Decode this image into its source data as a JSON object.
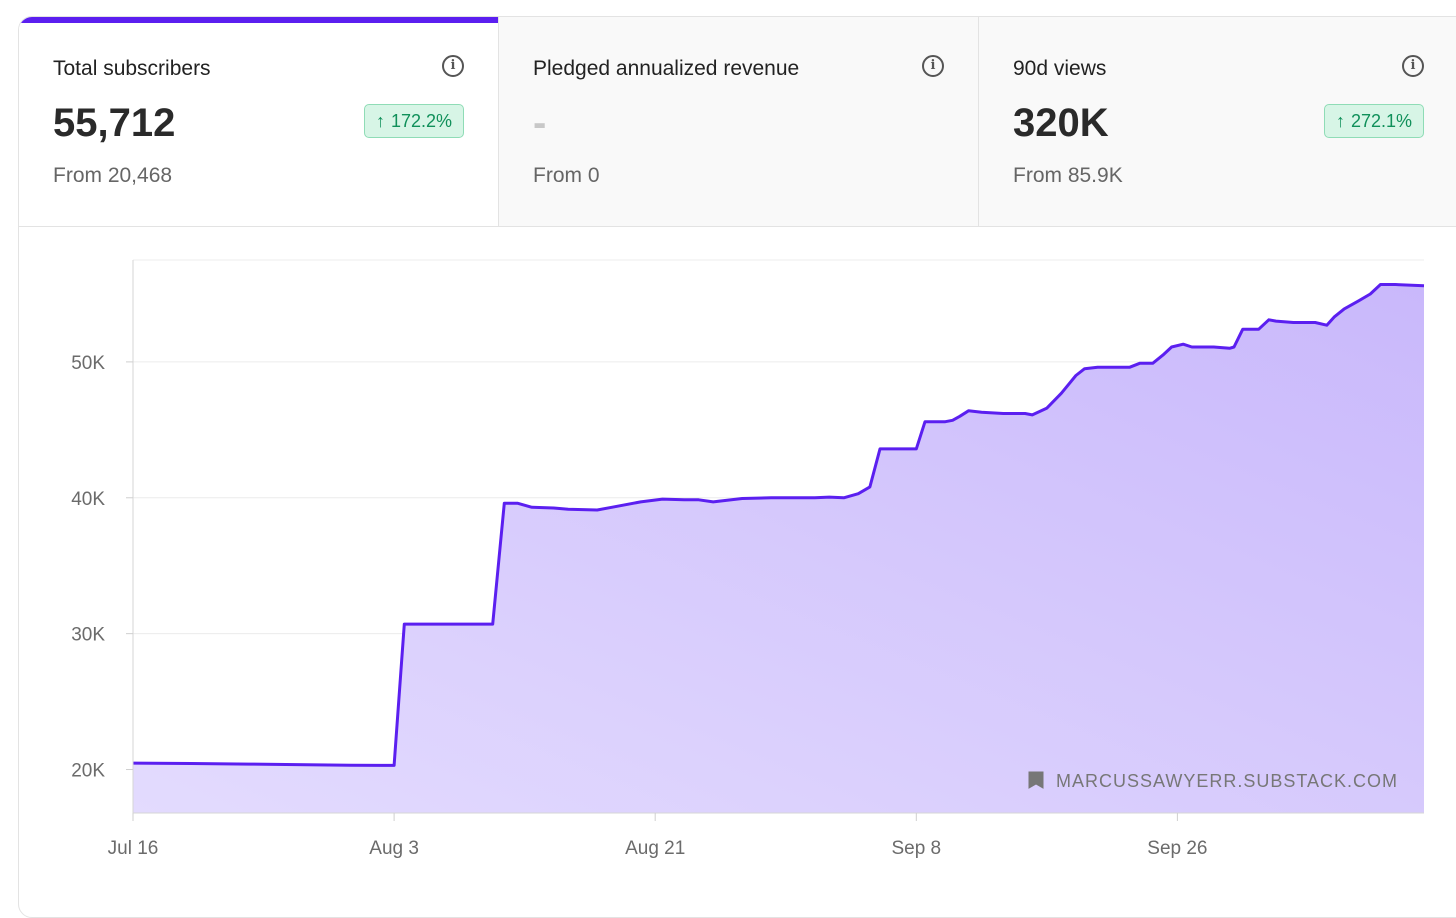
{
  "metrics": [
    {
      "label": "Total subscribers",
      "value": "55,712",
      "change": "172.2%",
      "from": "From 20,468",
      "active": true
    },
    {
      "label": "Pledged annualized revenue",
      "value": "-",
      "change": "",
      "from": "From 0",
      "active": false
    },
    {
      "label": "90d views",
      "value": "320K",
      "change": "272.1%",
      "from": "From 85.9K",
      "active": false
    }
  ],
  "info_glyph": "i",
  "arrow_glyph": "↑",
  "colors": {
    "accent": "#5b1ff0",
    "fill": "#c9b8fb",
    "badge_bg": "#d7f5e6",
    "badge_text": "#10905a"
  },
  "chart_data": {
    "type": "area",
    "title": "",
    "xlabel": "",
    "ylabel": "",
    "watermark": "MARCUSSAWYERR.SUBSTACK.COM",
    "x_ticks": [
      {
        "label": "Jul 16",
        "day": 0
      },
      {
        "label": "Aug 3",
        "day": 18
      },
      {
        "label": "Aug 21",
        "day": 36
      },
      {
        "label": "Sep 8",
        "day": 54
      },
      {
        "label": "Sep 26",
        "day": 72
      }
    ],
    "y_ticks": [
      {
        "label": "20K",
        "value": 20000
      },
      {
        "label": "30K",
        "value": 30000
      },
      {
        "label": "40K",
        "value": 40000
      },
      {
        "label": "50K",
        "value": 50000
      }
    ],
    "xlim": [
      0,
      89
    ],
    "ylim": [
      16800,
      57500
    ],
    "series": [
      {
        "name": "Total subscribers",
        "points": [
          [
            0,
            20470
          ],
          [
            4,
            20440
          ],
          [
            8,
            20400
          ],
          [
            12,
            20350
          ],
          [
            15,
            20320
          ],
          [
            17.5,
            20300
          ],
          [
            18,
            20300
          ],
          [
            18.7,
            30700
          ],
          [
            20,
            30700
          ],
          [
            23,
            30700
          ],
          [
            24.8,
            30700
          ],
          [
            25.6,
            39600
          ],
          [
            26.5,
            39600
          ],
          [
            27.5,
            39300
          ],
          [
            29,
            39250
          ],
          [
            30,
            39150
          ],
          [
            32,
            39100
          ],
          [
            33,
            39300
          ],
          [
            35,
            39700
          ],
          [
            36.5,
            39900
          ],
          [
            38,
            39850
          ],
          [
            39,
            39850
          ],
          [
            40,
            39700
          ],
          [
            42,
            39950
          ],
          [
            44,
            40000
          ],
          [
            46,
            40000
          ],
          [
            47,
            40000
          ],
          [
            48,
            40050
          ],
          [
            49,
            40000
          ],
          [
            50,
            40300
          ],
          [
            50.8,
            40800
          ],
          [
            51.5,
            43600
          ],
          [
            52,
            43600
          ],
          [
            53.5,
            43600
          ],
          [
            54,
            43600
          ],
          [
            54.6,
            45600
          ],
          [
            56,
            45600
          ],
          [
            56.5,
            45700
          ],
          [
            57,
            46000
          ],
          [
            57.6,
            46400
          ],
          [
            58.5,
            46300
          ],
          [
            60,
            46200
          ],
          [
            61.5,
            46200
          ],
          [
            62,
            46100
          ],
          [
            63,
            46600
          ],
          [
            64,
            47700
          ],
          [
            65,
            49000
          ],
          [
            65.6,
            49500
          ],
          [
            66.5,
            49600
          ],
          [
            68,
            49600
          ],
          [
            68.7,
            49600
          ],
          [
            69.4,
            49900
          ],
          [
            70.3,
            49900
          ],
          [
            71,
            50500
          ],
          [
            71.6,
            51100
          ],
          [
            72.4,
            51300
          ],
          [
            73,
            51100
          ],
          [
            74.5,
            51100
          ],
          [
            75.6,
            51000
          ],
          [
            75.9,
            51100
          ],
          [
            76.5,
            52400
          ],
          [
            77.6,
            52400
          ],
          [
            78.3,
            53100
          ],
          [
            78.8,
            53000
          ],
          [
            80,
            52900
          ],
          [
            81.5,
            52900
          ],
          [
            82.3,
            52700
          ],
          [
            82.8,
            53300
          ],
          [
            83.5,
            53900
          ],
          [
            84.5,
            54500
          ],
          [
            85.3,
            55000
          ],
          [
            86,
            55700
          ],
          [
            87,
            55700
          ],
          [
            89,
            55600
          ]
        ]
      }
    ]
  }
}
